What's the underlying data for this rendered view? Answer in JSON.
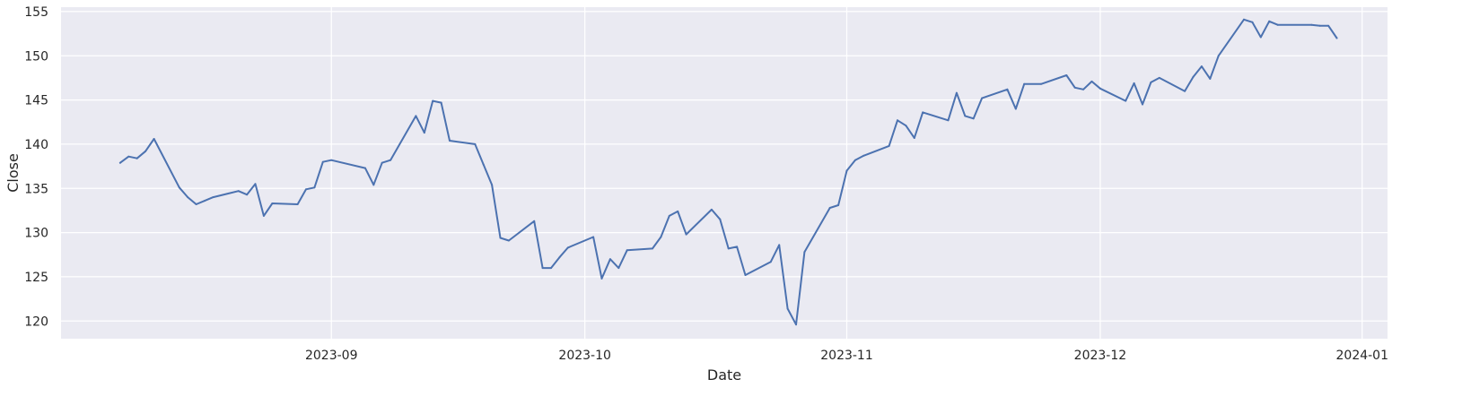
{
  "chart_data": {
    "type": "line",
    "title": "",
    "xlabel": "Date",
    "ylabel": "Close",
    "xlim": [
      "2023-07-31",
      "2024-01-04"
    ],
    "ylim": [
      118,
      155.5
    ],
    "grid": true,
    "x_ticks": [
      {
        "date": "2023-09-01",
        "label": "2023-09"
      },
      {
        "date": "2023-10-01",
        "label": "2023-10"
      },
      {
        "date": "2023-11-01",
        "label": "2023-11"
      },
      {
        "date": "2023-12-01",
        "label": "2023-12"
      },
      {
        "date": "2024-01-01",
        "label": "2024-01"
      }
    ],
    "y_ticks": [
      120,
      125,
      130,
      135,
      140,
      145,
      150,
      155
    ],
    "colors": {
      "series": "#4c72b0",
      "plot_background": "#eaeaf2",
      "grid": "#ffffff"
    },
    "x": [
      "2023-08-07",
      "2023-08-08",
      "2023-08-09",
      "2023-08-10",
      "2023-08-11",
      "2023-08-14",
      "2023-08-15",
      "2023-08-16",
      "2023-08-17",
      "2023-08-18",
      "2023-08-21",
      "2023-08-22",
      "2023-08-23",
      "2023-08-24",
      "2023-08-25",
      "2023-08-28",
      "2023-08-29",
      "2023-08-30",
      "2023-08-31",
      "2023-09-01",
      "2023-09-05",
      "2023-09-06",
      "2023-09-07",
      "2023-09-08",
      "2023-09-11",
      "2023-09-12",
      "2023-09-13",
      "2023-09-14",
      "2023-09-15",
      "2023-09-18",
      "2023-09-19",
      "2023-09-20",
      "2023-09-21",
      "2023-09-22",
      "2023-09-25",
      "2023-09-26",
      "2023-09-27",
      "2023-09-28",
      "2023-09-29",
      "2023-10-02",
      "2023-10-03",
      "2023-10-04",
      "2023-10-05",
      "2023-10-06",
      "2023-10-09",
      "2023-10-10",
      "2023-10-11",
      "2023-10-12",
      "2023-10-13",
      "2023-10-16",
      "2023-10-17",
      "2023-10-18",
      "2023-10-19",
      "2023-10-20",
      "2023-10-23",
      "2023-10-24",
      "2023-10-25",
      "2023-10-26",
      "2023-10-27",
      "2023-10-30",
      "2023-10-31",
      "2023-11-01",
      "2023-11-02",
      "2023-11-03",
      "2023-11-06",
      "2023-11-07",
      "2023-11-08",
      "2023-11-09",
      "2023-11-10",
      "2023-11-13",
      "2023-11-14",
      "2023-11-15",
      "2023-11-16",
      "2023-11-17",
      "2023-11-20",
      "2023-11-21",
      "2023-11-22",
      "2023-11-24",
      "2023-11-27",
      "2023-11-28",
      "2023-11-29",
      "2023-11-30",
      "2023-12-01",
      "2023-12-04",
      "2023-12-05",
      "2023-12-06",
      "2023-12-07",
      "2023-12-08",
      "2023-12-11",
      "2023-12-12",
      "2023-12-13",
      "2023-12-14",
      "2023-12-15",
      "2023-12-18",
      "2023-12-19",
      "2023-12-20",
      "2023-12-21",
      "2023-12-22",
      "2023-12-26",
      "2023-12-27",
      "2023-12-28",
      "2023-12-29"
    ],
    "series": [
      {
        "values": [
          137.9,
          138.6,
          138.4,
          139.2,
          140.6,
          135.1,
          134.0,
          133.2,
          133.6,
          134.0,
          134.7,
          134.3,
          135.5,
          131.9,
          133.3,
          133.2,
          134.9,
          135.1,
          138.0,
          138.2,
          137.3,
          135.4,
          137.9,
          138.2,
          143.2,
          141.3,
          144.9,
          144.7,
          140.4,
          140.0,
          137.7,
          135.4,
          129.4,
          129.1,
          131.3,
          126.0,
          126.0,
          127.2,
          128.3,
          129.5,
          124.8,
          127.0,
          126.0,
          128.0,
          128.2,
          129.5,
          131.9,
          132.4,
          129.8,
          132.6,
          131.5,
          128.2,
          128.4,
          125.2,
          126.7,
          128.6,
          121.4,
          119.6,
          127.8,
          132.8,
          133.1,
          137.0,
          138.2,
          138.7,
          139.8,
          142.7,
          142.1,
          140.7,
          143.6,
          142.7,
          145.8,
          143.2,
          142.9,
          145.2,
          146.2,
          144.0,
          146.8,
          146.8,
          147.8,
          146.4,
          146.2,
          147.1,
          146.3,
          144.9,
          146.9,
          144.5,
          147.0,
          147.5,
          146.0,
          147.6,
          148.8,
          147.4,
          150.0,
          154.1,
          153.8,
          152.1,
          153.9,
          153.5,
          153.5,
          153.4,
          153.4,
          152.0
        ]
      }
    ]
  }
}
